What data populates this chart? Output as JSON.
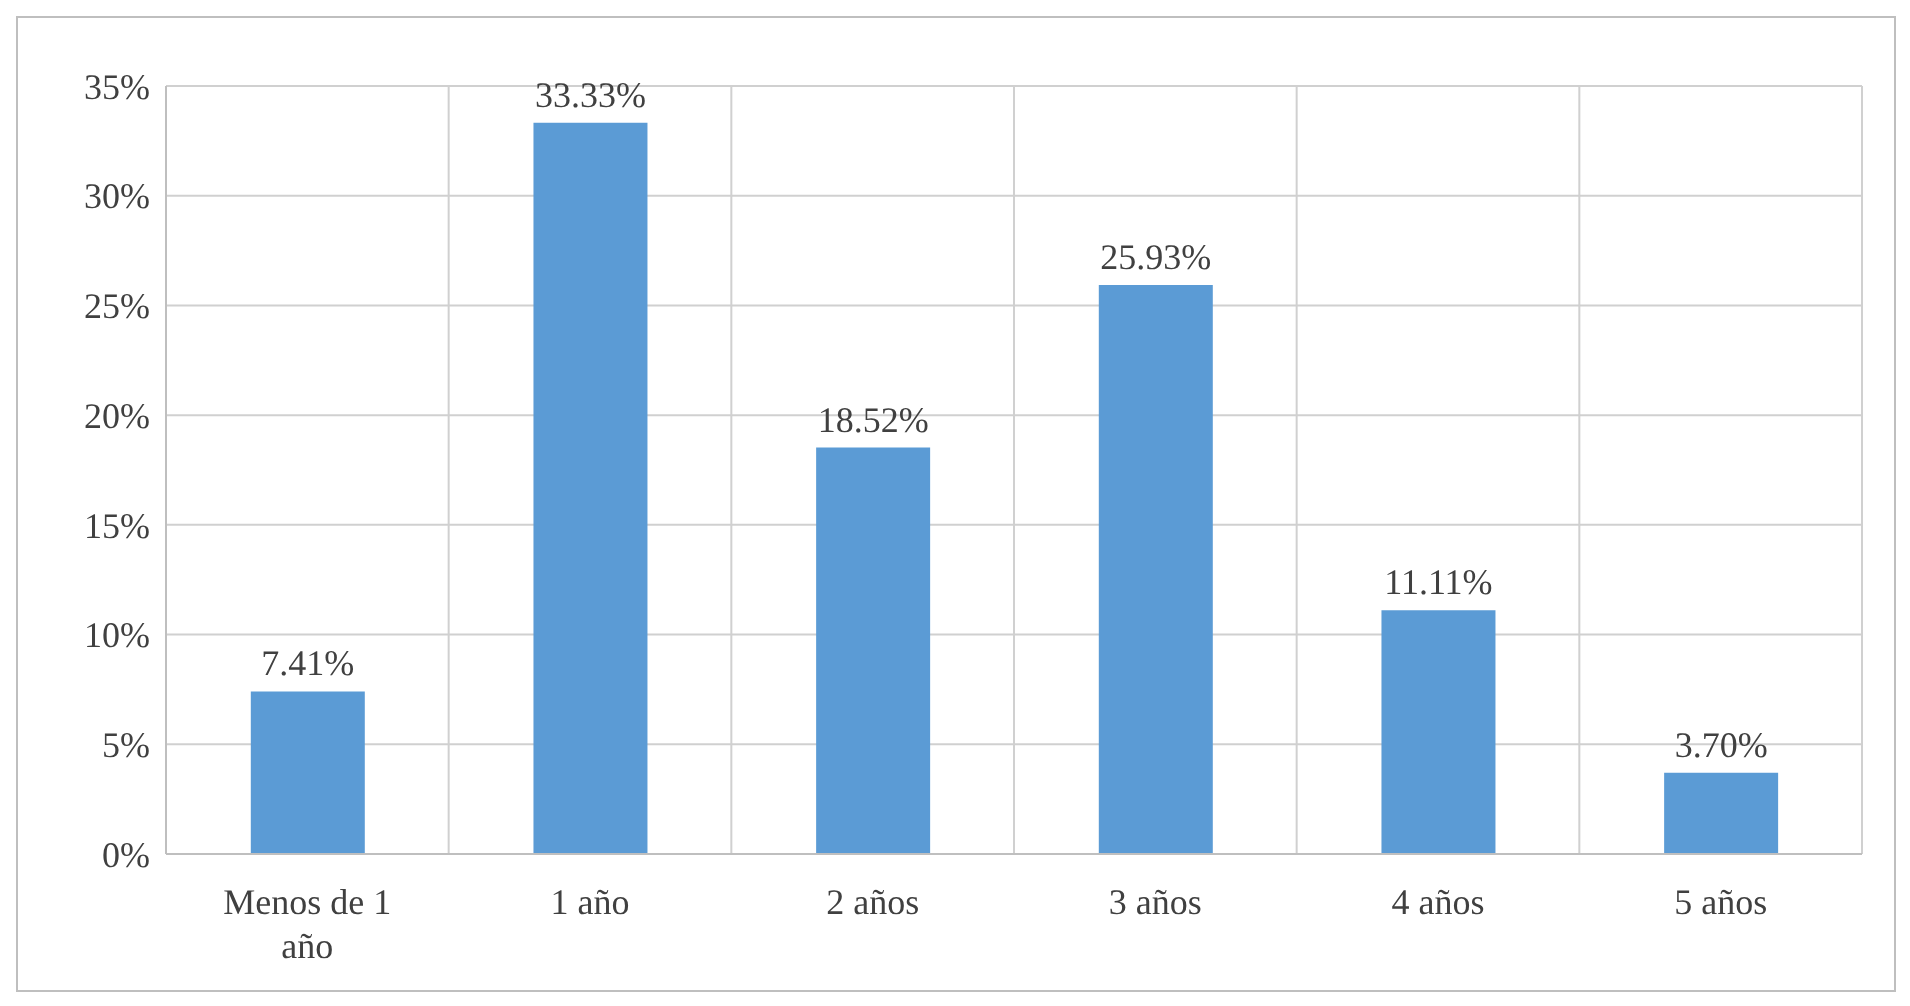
{
  "chart_data": {
    "type": "bar",
    "categories": [
      "Menos de 1 año",
      "1 año",
      "2 años",
      "3 años",
      "4 años",
      "5 años"
    ],
    "values": [
      7.41,
      33.33,
      18.52,
      25.93,
      11.11,
      3.7
    ],
    "value_labels": [
      "7.41%",
      "33.33%",
      "18.52%",
      "25.93%",
      "11.11%",
      "3.70%"
    ],
    "color": "#5b9bd5",
    "ylim": [
      0,
      35
    ],
    "yticks": [
      {
        "value": 0,
        "label": "0%"
      },
      {
        "value": 5,
        "label": "5%"
      },
      {
        "value": 10,
        "label": "10%"
      },
      {
        "value": 15,
        "label": "15%"
      },
      {
        "value": 20,
        "label": "20%"
      },
      {
        "value": 25,
        "label": "25%"
      },
      {
        "value": 30,
        "label": "30%"
      },
      {
        "value": 35,
        "label": "35%"
      }
    ],
    "grid": true
  }
}
